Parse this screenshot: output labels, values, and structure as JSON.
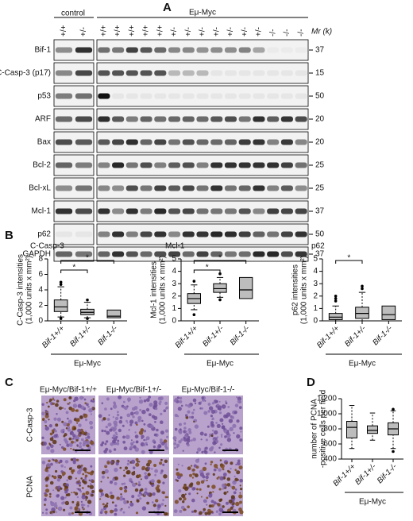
{
  "panel_a": {
    "letter": "A",
    "control": "control",
    "group": "Eμ-Myc",
    "mr_label": "Mr (k)",
    "control_lanes": [
      "+/+",
      "+/-"
    ],
    "myc_lanes": [
      "+/+",
      "+/+",
      "+/+",
      "+/+",
      "+/+",
      "+/-",
      "+/-",
      "+/-",
      "+/-",
      "+/-",
      "+/-",
      "+/-",
      "-/-",
      "-/-",
      "-/-"
    ],
    "rows": [
      {
        "label": "Bif-1",
        "mw": "37"
      },
      {
        "label": "C-Casp-3 (p17)",
        "mw": "15"
      },
      {
        "label": "p53",
        "mw": "50"
      },
      {
        "label": "ARF",
        "mw": "20"
      },
      {
        "label": "Bax",
        "mw": "20"
      },
      {
        "label": "Bcl-2",
        "mw": "25"
      },
      {
        "label": "Bcl-xL",
        "mw": "25"
      },
      {
        "label": "Mcl-1",
        "mw": "37"
      },
      {
        "label": "p62",
        "mw": "50"
      },
      {
        "label": "GAPDH",
        "mw": "37"
      }
    ]
  },
  "panel_b": {
    "letter": "B",
    "group": "Eμ-Myc",
    "plots": [
      {
        "title": "C-Casp-3",
        "ylabel": [
          "C-Casp-3 intensities",
          "(1,000 units x mm²)"
        ],
        "ylim": [
          0,
          8
        ],
        "yticks": [
          0,
          2,
          4,
          6,
          8
        ],
        "categories": [
          "Bif-1+/+",
          "Bif-1+/-",
          "Bif-1-/-"
        ],
        "boxes": [
          {
            "low": 0.5,
            "q1": 1.2,
            "median": 1.8,
            "q3": 2.7,
            "high": 4.4,
            "outliers": [
              5.0,
              4.7,
              0.3
            ]
          },
          {
            "low": 0.4,
            "q1": 0.8,
            "median": 1.1,
            "q3": 1.5,
            "high": 2.4,
            "outliers": [
              2.7,
              0.3
            ]
          },
          {
            "low": 0.4,
            "q1": 0.4,
            "median": 0.6,
            "q3": 1.4,
            "high": 1.4,
            "outliers": []
          }
        ],
        "brackets": [
          "*",
          "*"
        ]
      },
      {
        "title": "Mcl-1",
        "ylabel": [
          "Mcl-1 intensities",
          "(1,000 units x mm²)"
        ],
        "ylim": [
          0,
          5
        ],
        "yticks": [
          0,
          1,
          2,
          3,
          4,
          5
        ],
        "categories": [
          "Bif-1+/+",
          "Bif-1+/-",
          "Bif-1-/-"
        ],
        "boxes": [
          {
            "low": 0.9,
            "q1": 1.4,
            "median": 1.8,
            "q3": 2.2,
            "high": 2.9,
            "outliers": [
              3.2,
              0.5
            ]
          },
          {
            "low": 1.9,
            "q1": 2.3,
            "median": 2.6,
            "q3": 3.0,
            "high": 3.5,
            "outliers": [
              3.8,
              1.7
            ]
          },
          {
            "low": 1.8,
            "q1": 1.8,
            "median": 2.5,
            "q3": 3.5,
            "high": 3.5,
            "outliers": []
          }
        ],
        "brackets": [
          "*",
          "*"
        ]
      },
      {
        "title": "p62",
        "ylabel": [
          "p62 intensities",
          "(1,000 units x mm²)"
        ],
        "ylim": [
          0,
          5
        ],
        "yticks": [
          0,
          1,
          2,
          3,
          4,
          5
        ],
        "categories": [
          "Bif-1+/+",
          "Bif-1+/-",
          "Bif-1-/-"
        ],
        "boxes": [
          {
            "low": 0.0,
            "q1": 0.1,
            "median": 0.3,
            "q3": 0.6,
            "high": 1.2,
            "outliers": [
              1.6,
              1.8,
              2.0
            ]
          },
          {
            "low": 0.0,
            "q1": 0.2,
            "median": 0.6,
            "q3": 1.1,
            "high": 2.3,
            "outliers": [
              2.6,
              2.8
            ]
          },
          {
            "low": 0.1,
            "q1": 0.1,
            "median": 0.5,
            "q3": 1.2,
            "high": 1.2,
            "outliers": []
          }
        ],
        "brackets": [
          "*"
        ]
      }
    ]
  },
  "panel_c": {
    "letter": "C",
    "columns": [
      "Eμ-Myc/Bif-1+/+",
      "Eμ-Myc/Bif-1+/-",
      "Eμ-Myc/Bif-1-/-"
    ],
    "rows": [
      "C-Casp-3",
      "PCNA"
    ]
  },
  "panel_d": {
    "letter": "D",
    "group": "Eμ-Myc",
    "ylabel": [
      "number of PCNA",
      "-positive cells per field"
    ],
    "ylim": [
      400,
      1200
    ],
    "yticks": [
      400,
      600,
      800,
      {
        "value": 1000,
        "label": "1,000"
      },
      {
        "value": 1200,
        "label": "1,200"
      }
    ],
    "categories": [
      "Bif-1+/+",
      "Bif-1+/-",
      "Bif-1-/-"
    ],
    "boxes": [
      {
        "low": 540,
        "q1": 680,
        "median": 820,
        "q3": 900,
        "high": 1110,
        "outliers": []
      },
      {
        "low": 650,
        "q1": 740,
        "median": 780,
        "q3": 840,
        "high": 1010,
        "outliers": []
      },
      {
        "low": 540,
        "q1": 720,
        "median": 800,
        "q3": 880,
        "high": 1040,
        "outliers": [
          1060,
          500
        ]
      }
    ]
  }
}
